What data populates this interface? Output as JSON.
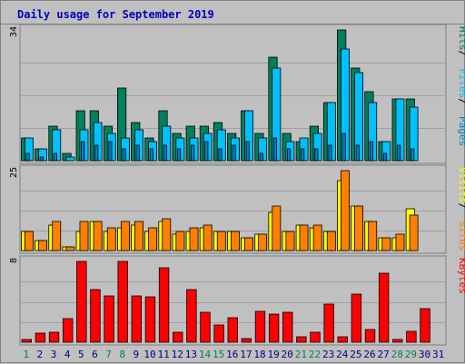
{
  "chart_data": {
    "title": "Daily usage for September 2019",
    "categories": [
      "1",
      "2",
      "3",
      "4",
      "5",
      "6",
      "7",
      "8",
      "9",
      "10",
      "11",
      "12",
      "13",
      "14",
      "15",
      "16",
      "17",
      "18",
      "19",
      "20",
      "21",
      "22",
      "23",
      "24",
      "25",
      "26",
      "27",
      "28",
      "29",
      "30",
      "31"
    ],
    "weekend_categories": [
      "1",
      "7",
      "8",
      "14",
      "15",
      "21",
      "22",
      "28",
      "29"
    ],
    "colors": {
      "background": "#c0c0c0",
      "hits": "#00805c",
      "files": "#00c0ff",
      "pages": "#0080c0",
      "visits": "#ffff00",
      "sites": "#ff8000",
      "kbytes": "#ff0000",
      "title": "#0000c0",
      "weekday_label": "#000080",
      "weekend_label": "#00805c"
    },
    "panels": [
      {
        "type": "bar",
        "ylim": [
          0,
          34
        ],
        "max_label": "34",
        "series": [
          {
            "name": "Hits",
            "values": [
              6,
              3,
              9,
              2,
              13,
              13,
              9,
              19,
              10,
              6,
              13,
              7,
              9,
              9,
              10,
              7,
              13,
              7,
              27,
              7,
              5,
              9,
              15,
              34,
              24,
              18,
              5,
              16,
              16,
              0,
              0
            ]
          },
          {
            "name": "Files",
            "values": [
              6,
              3,
              8,
              1,
              8,
              10,
              7,
              6,
              8,
              5,
              9,
              6,
              6,
              7,
              8,
              6,
              13,
              6,
              24,
              5,
              6,
              7,
              15,
              29,
              23,
              15,
              5,
              16,
              14,
              0,
              0
            ]
          },
          {
            "name": "Pages",
            "values": [
              2,
              1,
              2,
              0,
              5,
              4,
              5,
              3,
              4,
              3,
              4,
              3,
              4,
              5,
              3,
              4,
              5,
              2,
              6,
              3,
              3,
              3,
              4,
              7,
              4,
              5,
              2,
              4,
              3,
              0,
              0
            ]
          }
        ],
        "legend": [
          "Pages",
          "Files",
          "Hits"
        ]
      },
      {
        "type": "bar",
        "ylim": [
          0,
          25
        ],
        "max_label": "25",
        "series": [
          {
            "name": "Visits",
            "values": [
              6,
              3,
              8,
              1,
              6,
              9,
              6,
              7,
              8,
              6,
              9,
              5,
              6,
              7,
              6,
              6,
              4,
              5,
              12,
              6,
              8,
              7,
              6,
              22,
              14,
              9,
              4,
              4,
              13,
              0,
              0
            ]
          },
          {
            "name": "Sites",
            "values": [
              6,
              3,
              9,
              1,
              9,
              9,
              7,
              9,
              9,
              7,
              10,
              6,
              7,
              8,
              6,
              6,
              4,
              5,
              14,
              6,
              8,
              8,
              6,
              25,
              14,
              9,
              4,
              5,
              11,
              0,
              0
            ]
          }
        ],
        "legend": [
          "Sites",
          "Visits"
        ]
      },
      {
        "type": "bar",
        "ylim": [
          0,
          8
        ],
        "max_label": "8",
        "series": [
          {
            "name": "KBytes",
            "values": [
              0.3,
              0.9,
              1.0,
              2.3,
              8,
              5.2,
              4.6,
              8,
              4.6,
              4.5,
              7.4,
              1.0,
              5.2,
              3.0,
              1.7,
              2.4,
              0.4,
              3.1,
              2.8,
              3.0,
              0.5,
              1.0,
              3.8,
              0.5,
              4.8,
              1.3,
              6.8,
              0.3,
              1.1,
              3.3,
              0
            ]
          }
        ],
        "legend": [
          "KBytes"
        ]
      }
    ]
  }
}
